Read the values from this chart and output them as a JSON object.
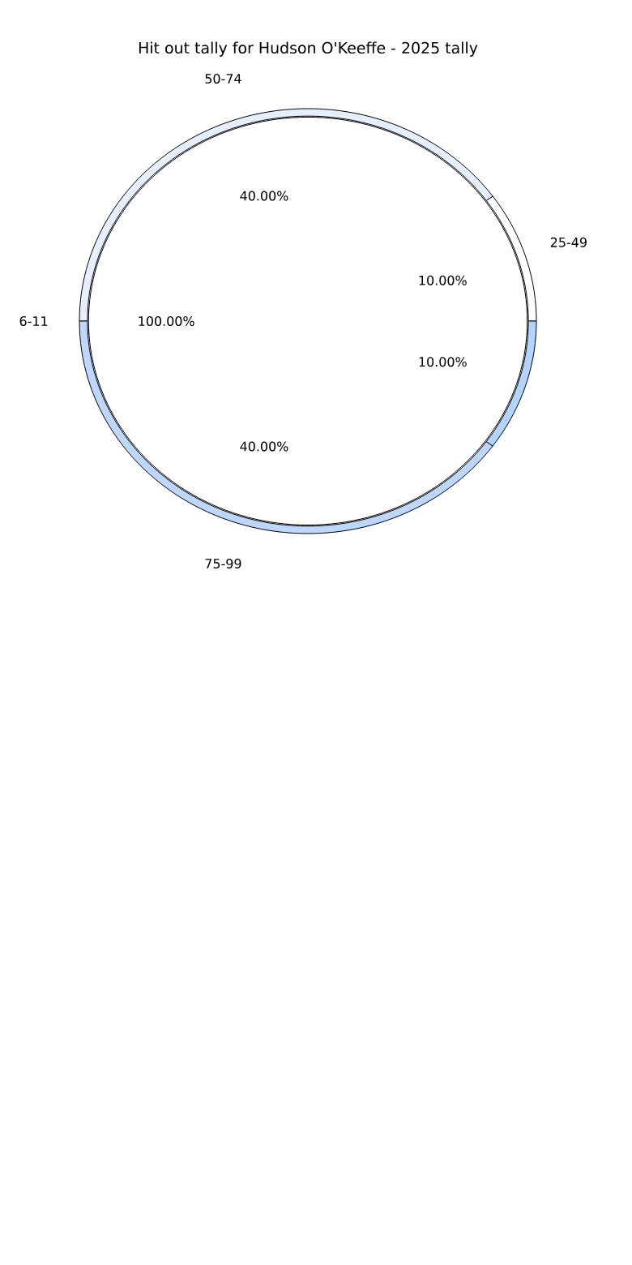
{
  "chart_data": [
    {
      "type": "donut",
      "title": "Hit out tally for Hudson O'Keeffe - 2025 tally",
      "categories": [
        "25-49",
        "50-74",
        "75-99",
        null
      ],
      "values": [
        10,
        40,
        40,
        10
      ],
      "colors": [
        "#ffffff",
        "#e6efff",
        "#bdd7ff",
        "#b3d4ff"
      ],
      "value_labels": [
        "10.00%",
        "40.00%",
        "40.00%",
        "10.00%"
      ]
    },
    {
      "type": "pie",
      "categories": [
        "6-11"
      ],
      "values": [
        100
      ],
      "colors": [
        "#ffffff"
      ],
      "value_labels": [
        "100.00%"
      ]
    }
  ]
}
